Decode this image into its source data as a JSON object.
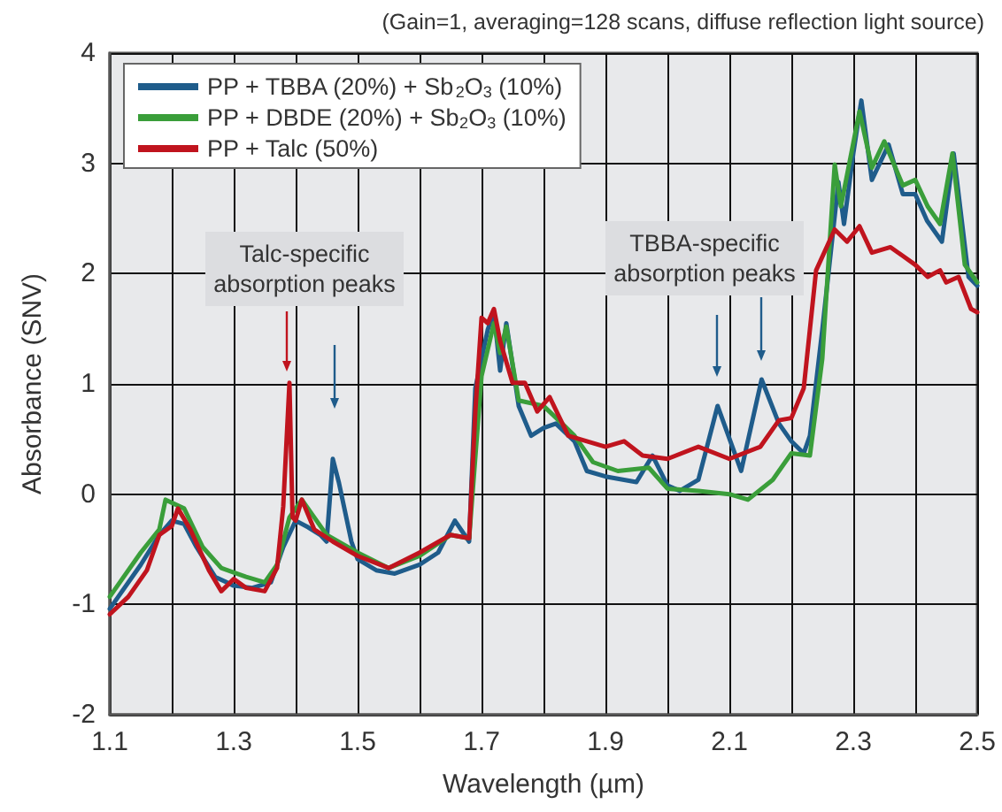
{
  "chart_data": {
    "type": "line",
    "xlabel": "Wavelength (µm)",
    "ylabel": "Absorbance (SNV)",
    "xlim": [
      1.1,
      2.5
    ],
    "xticks": [
      1.1,
      {
        "value": 1.2,
        "label": null
      },
      1.3,
      {
        "value": 1.4,
        "label": null
      },
      1.5,
      {
        "value": 1.6,
        "label": null
      },
      1.7,
      {
        "value": 1.8,
        "label": null
      },
      1.9,
      {
        "value": 2.0,
        "label": null
      },
      2.1,
      {
        "value": 2.2,
        "label": null
      },
      2.3,
      {
        "value": 2.4,
        "label": null
      },
      2.5
    ],
    "ylim": [
      -2,
      4
    ],
    "yticks": [
      -2,
      -1,
      0,
      1,
      2,
      3,
      4
    ],
    "grid": true,
    "legend": "top left",
    "marker": "none",
    "line_style": "solid",
    "annotations": [
      "(Gain=1, averaging=128 scans, diffuse reflection light source)",
      "Talc-specific absorption peaks",
      "TBBA-specific absorption peaks"
    ],
    "series": [
      {
        "name": "PP + TBBA (20%) + Sb$_{2}$O$_{3}$ (10%)",
        "color": "#1f5c8b",
        "x": [
          1.1,
          1.12,
          1.15,
          1.18,
          1.2,
          1.22,
          1.24,
          1.27,
          1.3,
          1.33,
          1.36,
          1.38,
          1.4,
          1.42,
          1.44,
          1.45,
          1.46,
          1.47,
          1.49,
          1.5,
          1.53,
          1.56,
          1.6,
          1.63,
          1.657,
          1.68,
          1.69,
          1.71,
          1.72,
          1.73,
          1.74,
          1.76,
          1.78,
          1.8,
          1.82,
          1.85,
          1.87,
          1.9,
          1.93,
          1.95,
          1.976,
          2.0,
          2.02,
          2.05,
          2.081,
          2.119,
          2.152,
          2.18,
          2.2,
          2.22,
          2.23,
          2.25,
          2.276,
          2.285,
          2.3,
          2.313,
          2.33,
          2.357,
          2.38,
          2.4,
          2.419,
          2.443,
          2.462,
          2.486,
          2.5
        ],
        "values": [
          -1.04,
          -0.88,
          -0.64,
          -0.37,
          -0.24,
          -0.27,
          -0.48,
          -0.75,
          -0.83,
          -0.85,
          -0.8,
          -0.48,
          -0.24,
          -0.3,
          -0.37,
          -0.43,
          0.32,
          0.1,
          -0.43,
          -0.59,
          -0.69,
          -0.72,
          -0.64,
          -0.53,
          -0.24,
          -0.43,
          0.96,
          1.49,
          1.65,
          1.12,
          1.55,
          0.8,
          0.53,
          0.6,
          0.64,
          0.48,
          0.21,
          0.16,
          0.13,
          0.11,
          0.35,
          0.08,
          0.03,
          0.13,
          0.8,
          0.21,
          1.04,
          0.64,
          0.48,
          0.37,
          0.53,
          1.49,
          2.83,
          2.45,
          3.09,
          3.57,
          2.85,
          3.17,
          2.72,
          2.72,
          2.48,
          2.29,
          3.09,
          1.97,
          1.89
        ]
      },
      {
        "name": "PP + DBDE (20%) + Sb$_{2}$O$_{3}$ (10%)",
        "color": "#3a9e3a",
        "x": [
          1.1,
          1.12,
          1.15,
          1.18,
          1.19,
          1.22,
          1.25,
          1.28,
          1.32,
          1.35,
          1.37,
          1.39,
          1.41,
          1.43,
          1.45,
          1.5,
          1.55,
          1.6,
          1.65,
          1.68,
          1.7,
          1.72,
          1.73,
          1.74,
          1.76,
          1.8,
          1.83,
          1.85,
          1.88,
          1.92,
          1.97,
          2.0,
          2.05,
          2.1,
          2.13,
          2.17,
          2.2,
          2.23,
          2.25,
          2.27,
          2.28,
          2.31,
          2.33,
          2.35,
          2.38,
          2.4,
          2.42,
          2.44,
          2.46,
          2.48,
          2.5
        ],
        "values": [
          -0.93,
          -0.77,
          -0.53,
          -0.32,
          -0.05,
          -0.13,
          -0.48,
          -0.67,
          -0.75,
          -0.8,
          -0.64,
          -0.21,
          -0.05,
          -0.21,
          -0.37,
          -0.53,
          -0.67,
          -0.56,
          -0.37,
          -0.4,
          1.07,
          1.55,
          1.28,
          1.52,
          0.85,
          0.8,
          0.64,
          0.53,
          0.29,
          0.21,
          0.24,
          0.05,
          0.03,
          0.0,
          -0.05,
          0.13,
          0.37,
          0.35,
          1.23,
          2.99,
          2.61,
          3.47,
          2.96,
          3.2,
          2.8,
          2.85,
          2.61,
          2.45,
          3.09,
          2.08,
          1.92
        ]
      },
      {
        "name": "PP + Talc (50%)",
        "color": "#c0141e",
        "x": [
          1.1,
          1.13,
          1.16,
          1.18,
          1.2,
          1.21,
          1.23,
          1.26,
          1.28,
          1.3,
          1.32,
          1.35,
          1.37,
          1.38,
          1.39,
          1.395,
          1.4,
          1.41,
          1.43,
          1.46,
          1.5,
          1.55,
          1.6,
          1.65,
          1.68,
          1.69,
          1.7,
          1.71,
          1.72,
          1.73,
          1.75,
          1.77,
          1.79,
          1.81,
          1.84,
          1.87,
          1.9,
          1.93,
          1.96,
          2.0,
          2.05,
          2.1,
          2.15,
          2.18,
          2.2,
          2.22,
          2.24,
          2.27,
          2.29,
          2.31,
          2.33,
          2.36,
          2.4,
          2.42,
          2.44,
          2.45,
          2.47,
          2.49,
          2.5
        ],
        "values": [
          -1.09,
          -0.93,
          -0.69,
          -0.37,
          -0.29,
          -0.13,
          -0.32,
          -0.69,
          -0.88,
          -0.77,
          -0.85,
          -0.88,
          -0.67,
          -0.11,
          1.01,
          -0.21,
          -0.24,
          -0.05,
          -0.32,
          -0.43,
          -0.56,
          -0.67,
          -0.53,
          -0.37,
          -0.4,
          0.75,
          1.6,
          1.55,
          1.68,
          1.39,
          1.01,
          1.01,
          0.75,
          0.88,
          0.53,
          0.48,
          0.43,
          0.48,
          0.35,
          0.32,
          0.43,
          0.32,
          0.43,
          0.67,
          0.69,
          0.96,
          2.03,
          2.4,
          2.29,
          2.43,
          2.19,
          2.24,
          2.08,
          1.97,
          2.03,
          1.92,
          1.97,
          1.68,
          1.65
        ]
      }
    ]
  }
}
